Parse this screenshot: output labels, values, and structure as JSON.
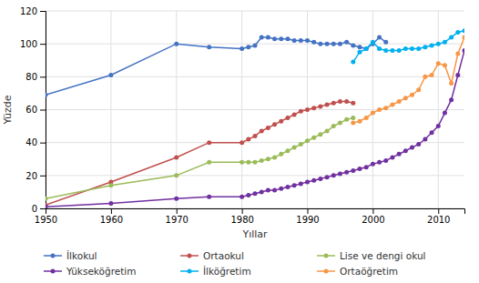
{
  "chart_data": {
    "type": "line",
    "xlabel": "Yıllar",
    "ylabel": "Yüzde",
    "xlim": [
      1950,
      2014
    ],
    "ylim": [
      0,
      120
    ],
    "xticks": [
      1950,
      1960,
      1970,
      1980,
      1990,
      2000,
      2010
    ],
    "yticks": [
      0,
      20,
      40,
      60,
      80,
      100,
      120
    ],
    "grid": true,
    "legend": "bottom",
    "marker": "circle",
    "series": [
      {
        "name": "İlkokul",
        "color": "#4472C4",
        "x": [
          1950,
          1960,
          1970,
          1975,
          1980,
          1981,
          1982,
          1983,
          1984,
          1985,
          1986,
          1987,
          1988,
          1989,
          1990,
          1991,
          1992,
          1993,
          1994,
          1995,
          1996,
          1997,
          1998,
          1999,
          2000,
          2001,
          2002
        ],
        "values": [
          69,
          81,
          100,
          98,
          97,
          98,
          99,
          104,
          104,
          103,
          103,
          103,
          102,
          102,
          102,
          101,
          100,
          100,
          100,
          100,
          101,
          99,
          98,
          97,
          100,
          104,
          101
        ]
      },
      {
        "name": "Ortaokul",
        "color": "#C0504D",
        "x": [
          1950,
          1960,
          1970,
          1975,
          1980,
          1981,
          1982,
          1983,
          1984,
          1985,
          1986,
          1987,
          1988,
          1989,
          1990,
          1991,
          1992,
          1993,
          1994,
          1995,
          1996,
          1997
        ],
        "values": [
          2,
          16,
          31,
          40,
          40,
          42,
          44,
          47,
          49,
          51,
          53,
          55,
          57,
          59,
          60,
          61,
          62,
          63,
          64,
          65,
          65,
          64
        ]
      },
      {
        "name": "Lise ve dengi okul",
        "color": "#9BBB59",
        "x": [
          1950,
          1960,
          1970,
          1975,
          1980,
          1981,
          1982,
          1983,
          1984,
          1985,
          1986,
          1987,
          1988,
          1989,
          1990,
          1991,
          1992,
          1993,
          1994,
          1995,
          1996,
          1997
        ],
        "values": [
          6,
          14,
          20,
          28,
          28,
          28,
          28,
          29,
          30,
          31,
          33,
          35,
          37,
          39,
          41,
          43,
          45,
          47,
          50,
          52,
          54,
          55
        ]
      },
      {
        "name": "Yükseköğretim",
        "color": "#7030A0",
        "x": [
          1950,
          1960,
          1970,
          1975,
          1980,
          1981,
          1982,
          1983,
          1984,
          1985,
          1986,
          1987,
          1988,
          1989,
          1990,
          1991,
          1992,
          1993,
          1994,
          1995,
          1996,
          1997,
          1998,
          1999,
          2000,
          2001,
          2002,
          2003,
          2004,
          2005,
          2006,
          2007,
          2008,
          2009,
          2010,
          2011,
          2012,
          2013,
          2014
        ],
        "values": [
          1,
          3,
          6,
          7,
          7,
          8,
          9,
          10,
          11,
          11,
          12,
          13,
          14,
          15,
          16,
          17,
          18,
          19,
          20,
          21,
          22,
          23,
          24,
          25,
          27,
          28,
          29,
          31,
          33,
          35,
          37,
          39,
          42,
          46,
          50,
          58,
          66,
          81,
          96
        ]
      },
      {
        "name": "İlköğretim",
        "color": "#00B0F0",
        "x": [
          1997,
          1998,
          1999,
          2000,
          2001,
          2002,
          2003,
          2004,
          2005,
          2006,
          2007,
          2008,
          2009,
          2010,
          2011,
          2012,
          2013,
          2014
        ],
        "values": [
          89,
          95,
          97,
          101,
          97,
          96,
          96,
          96,
          97,
          97,
          97,
          98,
          99,
          100,
          101,
          104,
          107,
          108
        ]
      },
      {
        "name": "Ortaöğretim",
        "color": "#F79646",
        "x": [
          1997,
          1998,
          1999,
          2000,
          2001,
          2002,
          2003,
          2004,
          2005,
          2006,
          2007,
          2008,
          2009,
          2010,
          2011,
          2012,
          2013,
          2014
        ],
        "values": [
          52,
          53,
          55,
          58,
          60,
          61,
          63,
          65,
          67,
          69,
          72,
          80,
          81,
          88,
          87,
          76,
          94,
          104
        ]
      }
    ]
  }
}
